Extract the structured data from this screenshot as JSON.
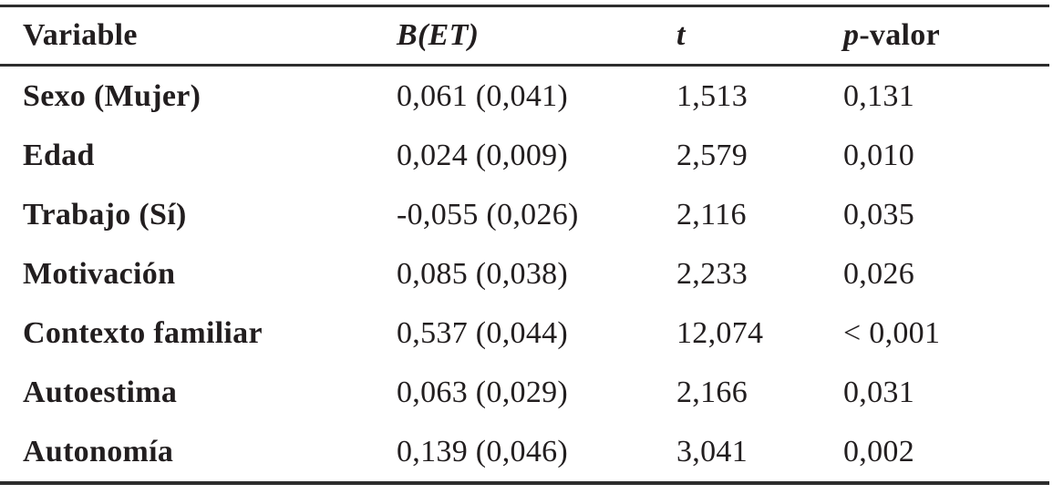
{
  "table": {
    "header": {
      "variable": "Variable",
      "b_et": "B(ET)",
      "t": "t",
      "p_italic": "p",
      "p_rest": "-valor"
    },
    "rows": [
      {
        "variable": "Sexo (Mujer)",
        "b_et": "0,061 (0,041)",
        "t": "1,513",
        "p": "0,131"
      },
      {
        "variable": "Edad",
        "b_et": "0,024 (0,009)",
        "t": "2,579",
        "p": "0,010"
      },
      {
        "variable": "Trabajo (Sí)",
        "b_et": "-0,055 (0,026)",
        "t": "2,116",
        "p": "0,035"
      },
      {
        "variable": "Motivación",
        "b_et": "0,085 (0,038)",
        "t": "2,233",
        "p": "0,026"
      },
      {
        "variable": "Contexto familiar",
        "b_et": "0,537 (0,044)",
        "t": "12,074",
        "p": "< 0,001"
      },
      {
        "variable": "Autoestima",
        "b_et": "0,063 (0,029)",
        "t": "2,166",
        "p": "0,031"
      },
      {
        "variable": "Autonomía",
        "b_et": "0,139 (0,046)",
        "t": "3,041",
        "p": "0,002"
      }
    ],
    "colors": {
      "text": "#221e1f",
      "rule": "#2d2d2d",
      "background": "#ffffff"
    }
  }
}
